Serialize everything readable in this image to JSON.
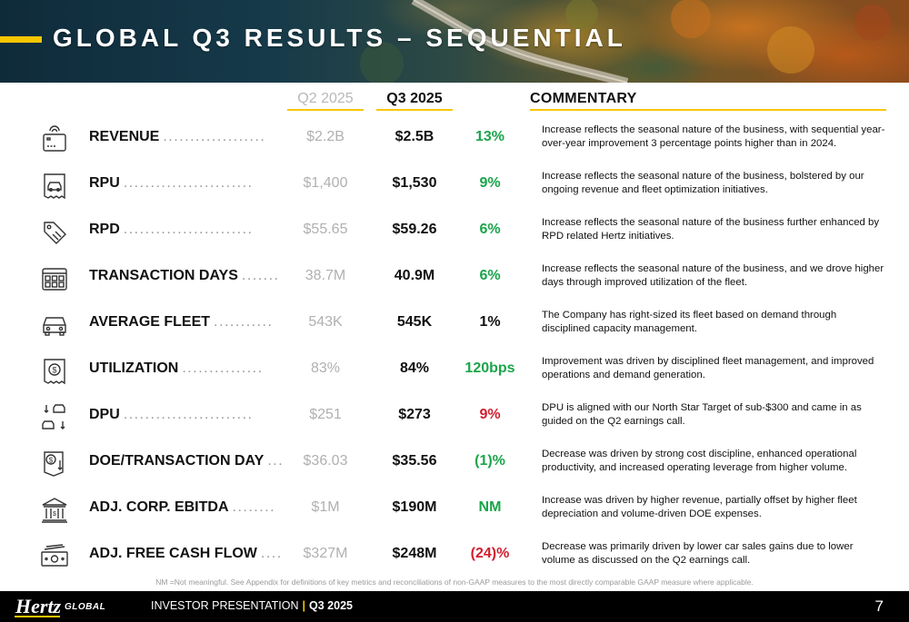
{
  "title": "GLOBAL Q3 RESULTS – SEQUENTIAL",
  "columns": {
    "q2": "Q2 2025",
    "q3": "Q3 2025",
    "commentary": "COMMENTARY"
  },
  "colors": {
    "accent": "#f7c600",
    "positive": "#1aa54a",
    "negative": "#d11f2f",
    "neutral": "#111111",
    "muted": "#b0b0b0"
  },
  "rows": [
    {
      "icon": "cash-register-icon",
      "label": "REVENUE",
      "dots": "...................",
      "q2": "$2.2B",
      "q3": "$2.5B",
      "change": "13%",
      "change_color": "#1aa54a",
      "comment": "Increase reflects the seasonal nature of the business, with sequential year-over-year  improvement 3 percentage points higher than in 2024."
    },
    {
      "icon": "car-receipt-icon",
      "label": "RPU",
      "dots": "........................",
      "q2": "$1,400",
      "q3": "$1,530",
      "change": "9%",
      "change_color": "#1aa54a",
      "comment": "Increase reflects the seasonal nature of the business, bolstered by our ongoing revenue and fleet optimization initiatives."
    },
    {
      "icon": "price-tag-icon",
      "label": "RPD",
      "dots": "........................",
      "q2": "$55.65",
      "q3": "$59.26",
      "change": "6%",
      "change_color": "#1aa54a",
      "comment": "Increase reflects the seasonal nature of the business further enhanced by RPD related Hertz initiatives."
    },
    {
      "icon": "calendar-grid-icon",
      "label": "TRANSACTION DAYS",
      "dots": ".......",
      "q2": "38.7M",
      "q3": "40.9M",
      "change": "6%",
      "change_color": "#1aa54a",
      "comment": "Increase reflects the seasonal nature of the business, and we drove higher days through improved utilization of the fleet."
    },
    {
      "icon": "car-front-icon",
      "label": "AVERAGE FLEET",
      "dots": "...........",
      "q2": "543K",
      "q3": "545K",
      "change": "1%",
      "change_color": "#111111",
      "comment": "The Company has right-sized its fleet based on demand through disciplined capacity management."
    },
    {
      "icon": "dollar-receipt-icon",
      "label": "UTILIZATION",
      "dots": "...............",
      "q2": "83%",
      "q3": "84%",
      "change": "120bps",
      "change_color": "#1aa54a",
      "comment": "Improvement was driven by disciplined fleet management, and improved operations and demand generation."
    },
    {
      "icon": "car-depreciation-icon",
      "label": "DPU",
      "dots": "........................",
      "q2": "$251",
      "q3": "$273",
      "change": "9%",
      "change_color": "#d11f2f",
      "comment": "DPU is aligned with our North Star Target of sub-$300 and came in as guided on the Q2 earnings call."
    },
    {
      "icon": "cost-receipt-icon",
      "label": "DOE/TRANSACTION DAY",
      "dots": "...",
      "q2": "$36.03",
      "q3": "$35.56",
      "change": "(1)%",
      "change_color": "#1aa54a",
      "comment": "Decrease was driven by strong cost discipline, enhanced operational productivity, and increased operating leverage from higher volume."
    },
    {
      "icon": "bank-building-icon",
      "label": "ADJ. CORP. EBITDA",
      "dots": "........",
      "q2": "$1M",
      "q3": "$190M",
      "change": "NM",
      "change_color": "#1aa54a",
      "comment": "Increase was driven by higher revenue, partially offset by higher fleet depreciation and volume-driven DOE expenses."
    },
    {
      "icon": "cash-bills-icon",
      "label": "ADJ. FREE CASH FLOW",
      "dots": "....",
      "q2": "$327M",
      "q3": "$248M",
      "change": "(24)%",
      "change_color": "#d11f2f",
      "comment": "Decrease was primarily driven by lower car sales gains due to lower volume as discussed on the Q2 earnings call."
    }
  ],
  "footnote": "NM =Not meaningful. See Appendix for definitions of key metrics and reconciliations of non-GAAP measures to the most directly comparable GAAP measure where applicable.",
  "footer": {
    "logo_main": "Hertz",
    "logo_sub": "GLOBAL",
    "presentation": "INVESTOR PRESENTATION",
    "separator": "|",
    "quarter": "Q3 2025",
    "page_number": "7"
  }
}
